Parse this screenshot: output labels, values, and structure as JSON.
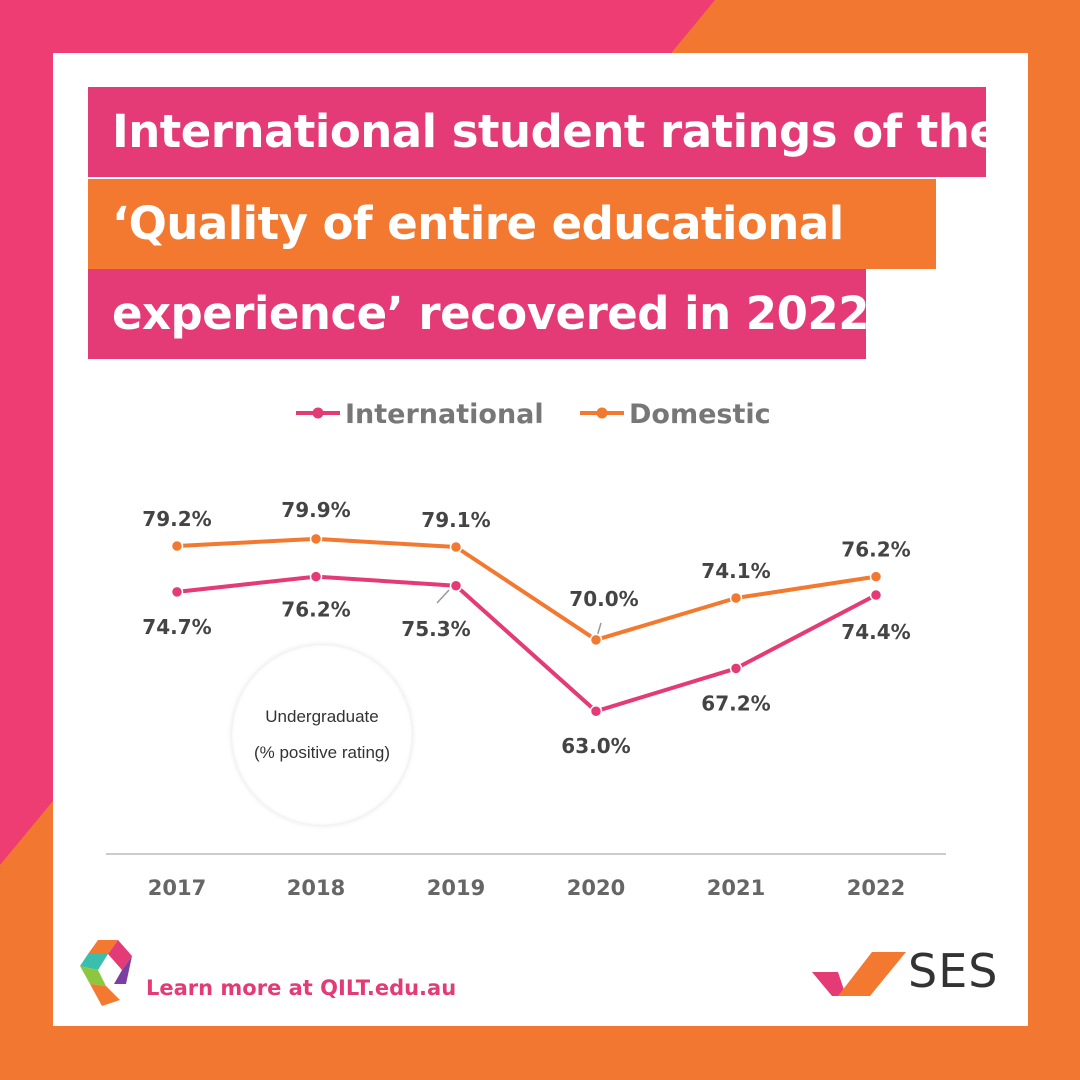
{
  "title_lines": [
    "International student ratings of the",
    "‘Quality of entire educational",
    "experience’ recovered in 2022"
  ],
  "colors": {
    "pink": "#e43a75",
    "orange": "#f2792f",
    "background_pink": "#ed3d72",
    "background_orange": "#f27730"
  },
  "badge": {
    "line1": "Undergraduate",
    "line2": "(% positive rating)"
  },
  "footer": {
    "link_text": "Learn more at QILT.edu.au",
    "logo_text": "SES"
  },
  "chart_data": {
    "type": "line",
    "x": [
      "2017",
      "2018",
      "2019",
      "2020",
      "2021",
      "2022"
    ],
    "series": [
      {
        "name": "International",
        "color": "#e43a75",
        "values": [
          74.7,
          76.2,
          75.3,
          63.0,
          67.2,
          74.4
        ],
        "labels": [
          "74.7%",
          "76.2%",
          "75.3%",
          "63.0%",
          "67.2%",
          "74.4%"
        ]
      },
      {
        "name": "Domestic",
        "color": "#f2792f",
        "values": [
          79.2,
          79.9,
          79.1,
          70.0,
          74.1,
          76.2
        ],
        "labels": [
          "79.2%",
          "79.9%",
          "79.1%",
          "70.0%",
          "74.1%",
          "76.2%"
        ]
      }
    ],
    "legend_position": "top-center",
    "grid": false
  }
}
